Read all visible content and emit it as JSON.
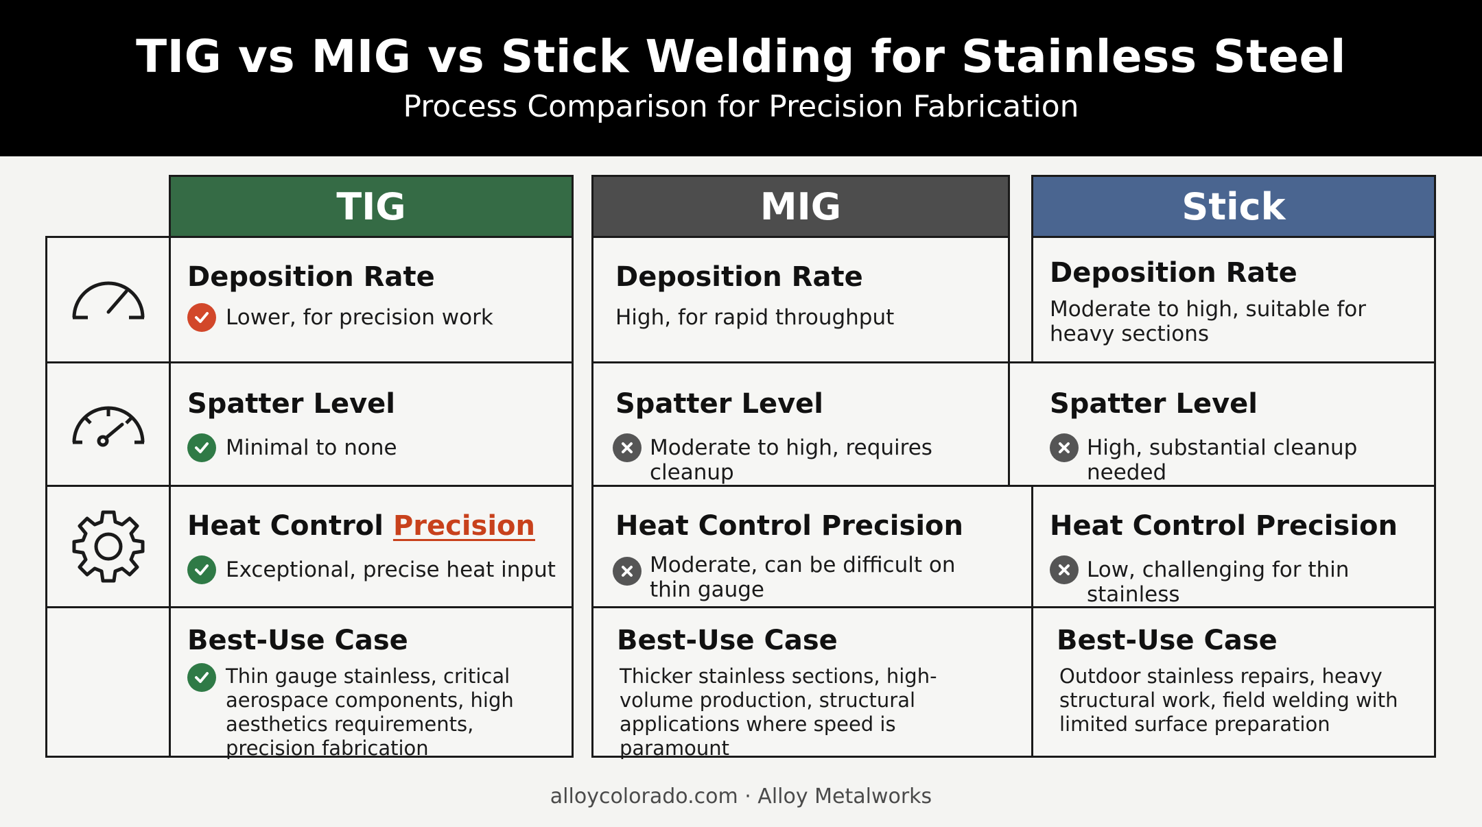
{
  "header": {
    "title": "TIG vs MIG vs Stick Welding for Stainless Steel",
    "subtitle": "Process Comparison for Precision Fabrication"
  },
  "columns": [
    {
      "label": "TIG",
      "color": "#356b45"
    },
    {
      "label": "MIG",
      "color": "#4d4d4d"
    },
    {
      "label": "Stick",
      "color": "#4a6590"
    }
  ],
  "row_icons": [
    "speedometer-low-icon",
    "gauge-icon",
    "gear-icon",
    ""
  ],
  "rows": {
    "deposition": {
      "tig": {
        "title": "Deposition Rate",
        "text": "Lower, for precision work",
        "status": "good"
      },
      "mig": {
        "title": "Deposition Rate",
        "text": "High, for rapid throughput",
        "status": "none"
      },
      "stick": {
        "title": "Deposition Rate",
        "text": "Moderate to high, suitable for heavy sections",
        "status": "none"
      }
    },
    "spatter": {
      "tig": {
        "title": "Spatter Level",
        "text": "Minimal to none",
        "status": "good"
      },
      "mig": {
        "title": "Spatter Level",
        "text": "Moderate to high, requires cleanup",
        "status": "bad"
      },
      "stick": {
        "title": "Spatter Level",
        "text": "High, substantial cleanup needed",
        "status": "bad"
      }
    },
    "heat": {
      "tig": {
        "title_main": "Heat Control",
        "title_highlight": "Precision",
        "text": "Exceptional, precise heat input",
        "status": "good"
      },
      "mig": {
        "title": "Heat Control Precision",
        "text": "Moderate, can be difficult on thin gauge",
        "status": "bad"
      },
      "stick": {
        "title": "Heat Control Precision",
        "text": "Low, challenging for thin stainless",
        "status": "bad"
      }
    },
    "bestuse": {
      "tig": {
        "title": "Best-Use Case",
        "text": "Thin gauge stainless, critical aerospace components, high aesthetics requirements, precision fabrication",
        "status": "good"
      },
      "mig": {
        "title": "Best-Use Case",
        "text": "Thicker stainless sections, high-volume production, structural applications where speed is paramount",
        "status": "none"
      },
      "stick": {
        "title": "Best-Use Case",
        "text": "Outdoor stainless repairs, heavy structural work, field welding with limited surface preparation",
        "status": "none"
      }
    }
  },
  "status_colors": {
    "good": "#2f7a46",
    "bad": "#555555",
    "good_first": "#d2472a"
  },
  "footer": "alloycolorado.com · Alloy Metalworks"
}
